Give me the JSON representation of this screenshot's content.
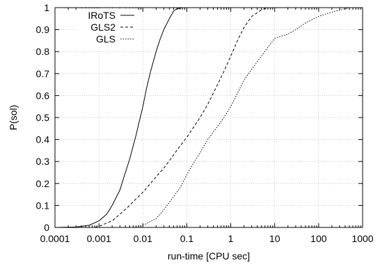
{
  "chart_data": {
    "type": "line",
    "xscale": "log",
    "xlabel": "run-time [CPU sec]",
    "ylabel": "P(sol)",
    "xlim": [
      0.0001,
      1000
    ],
    "ylim": [
      0,
      1
    ],
    "grid": true,
    "legend_position": "top-left",
    "xticks": [
      {
        "v": 0.0001,
        "label": "0.0001"
      },
      {
        "v": 0.001,
        "label": "0.001"
      },
      {
        "v": 0.01,
        "label": "0.01"
      },
      {
        "v": 0.1,
        "label": "0.1"
      },
      {
        "v": 1,
        "label": "1"
      },
      {
        "v": 10,
        "label": "10"
      },
      {
        "v": 100,
        "label": "100"
      },
      {
        "v": 1000,
        "label": "1000"
      }
    ],
    "yticks": [
      {
        "v": 0,
        "label": "0"
      },
      {
        "v": 0.1,
        "label": "0.1"
      },
      {
        "v": 0.2,
        "label": "0.2"
      },
      {
        "v": 0.3,
        "label": "0.3"
      },
      {
        "v": 0.4,
        "label": "0.4"
      },
      {
        "v": 0.5,
        "label": "0.5"
      },
      {
        "v": 0.6,
        "label": "0.6"
      },
      {
        "v": 0.7,
        "label": "0.7"
      },
      {
        "v": 0.8,
        "label": "0.8"
      },
      {
        "v": 0.9,
        "label": "0.9"
      },
      {
        "v": 1,
        "label": "1"
      }
    ],
    "series": [
      {
        "name": "IRoTS",
        "style": "solid",
        "points": [
          [
            0.0001,
            0
          ],
          [
            0.0003,
            0.002
          ],
          [
            0.0006,
            0.01
          ],
          [
            0.001,
            0.03
          ],
          [
            0.0015,
            0.06
          ],
          [
            0.002,
            0.1
          ],
          [
            0.003,
            0.17
          ],
          [
            0.004,
            0.25
          ],
          [
            0.005,
            0.31
          ],
          [
            0.006,
            0.37
          ],
          [
            0.007,
            0.42
          ],
          [
            0.008,
            0.47
          ],
          [
            0.01,
            0.55
          ],
          [
            0.012,
            0.63
          ],
          [
            0.015,
            0.71
          ],
          [
            0.02,
            0.8
          ],
          [
            0.025,
            0.86
          ],
          [
            0.03,
            0.9
          ],
          [
            0.04,
            0.95
          ],
          [
            0.05,
            0.985
          ],
          [
            0.06,
            0.995
          ],
          [
            0.08,
            1.0
          ]
        ]
      },
      {
        "name": "GLS2",
        "style": "dashed",
        "points": [
          [
            0.0008,
            0
          ],
          [
            0.001,
            0.005
          ],
          [
            0.002,
            0.03
          ],
          [
            0.003,
            0.06
          ],
          [
            0.005,
            0.1
          ],
          [
            0.007,
            0.13
          ],
          [
            0.01,
            0.16
          ],
          [
            0.02,
            0.23
          ],
          [
            0.03,
            0.27
          ],
          [
            0.05,
            0.33
          ],
          [
            0.07,
            0.37
          ],
          [
            0.1,
            0.41
          ],
          [
            0.2,
            0.5
          ],
          [
            0.3,
            0.56
          ],
          [
            0.5,
            0.65
          ],
          [
            0.7,
            0.71
          ],
          [
            1.0,
            0.78
          ],
          [
            1.5,
            0.86
          ],
          [
            2.0,
            0.91
          ],
          [
            3.0,
            0.96
          ],
          [
            5.0,
            0.99
          ],
          [
            7.0,
            1.0
          ]
        ]
      },
      {
        "name": "GLS",
        "style": "dotted",
        "points": [
          [
            0.006,
            0
          ],
          [
            0.01,
            0.01
          ],
          [
            0.02,
            0.04
          ],
          [
            0.03,
            0.08
          ],
          [
            0.05,
            0.14
          ],
          [
            0.07,
            0.18
          ],
          [
            0.1,
            0.24
          ],
          [
            0.15,
            0.3
          ],
          [
            0.2,
            0.34
          ],
          [
            0.3,
            0.4
          ],
          [
            0.5,
            0.46
          ],
          [
            0.7,
            0.5
          ],
          [
            1.0,
            0.55
          ],
          [
            1.5,
            0.62
          ],
          [
            2.0,
            0.67
          ],
          [
            3.0,
            0.72
          ],
          [
            5.0,
            0.78
          ],
          [
            7.0,
            0.82
          ],
          [
            10.0,
            0.86
          ],
          [
            20.0,
            0.88
          ],
          [
            30.0,
            0.9
          ],
          [
            50.0,
            0.93
          ],
          [
            100.0,
            0.96
          ],
          [
            200.0,
            0.98
          ],
          [
            500.0,
            1.0
          ]
        ]
      }
    ]
  }
}
